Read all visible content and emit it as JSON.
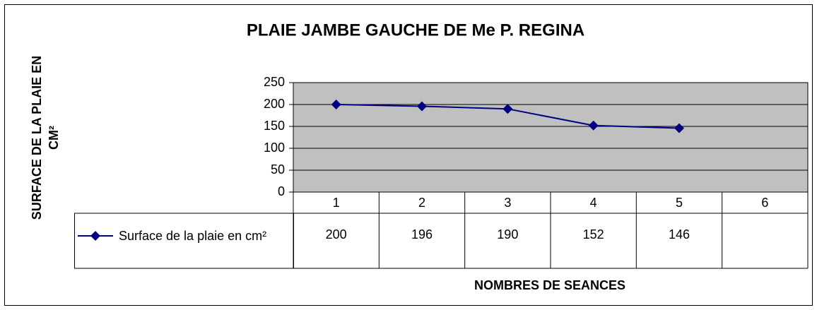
{
  "chart_data": {
    "type": "line",
    "title": "PLAIE JAMBE GAUCHE DE Me P. REGINA",
    "xlabel": "NOMBRES DE SEANCES",
    "ylabel": "SURFACE DE LA PLAIE EN CM²",
    "categories": [
      "1",
      "2",
      "3",
      "4",
      "5",
      "6"
    ],
    "series": [
      {
        "name": "Surface de la plaie en cm²",
        "color": "#000080",
        "values": [
          200,
          196,
          190,
          152,
          146,
          null
        ]
      }
    ],
    "ylim": [
      0,
      250
    ],
    "yticks": [
      0,
      50,
      100,
      150,
      200,
      250
    ],
    "grid": true,
    "plot_background": "#c0c0c0"
  }
}
